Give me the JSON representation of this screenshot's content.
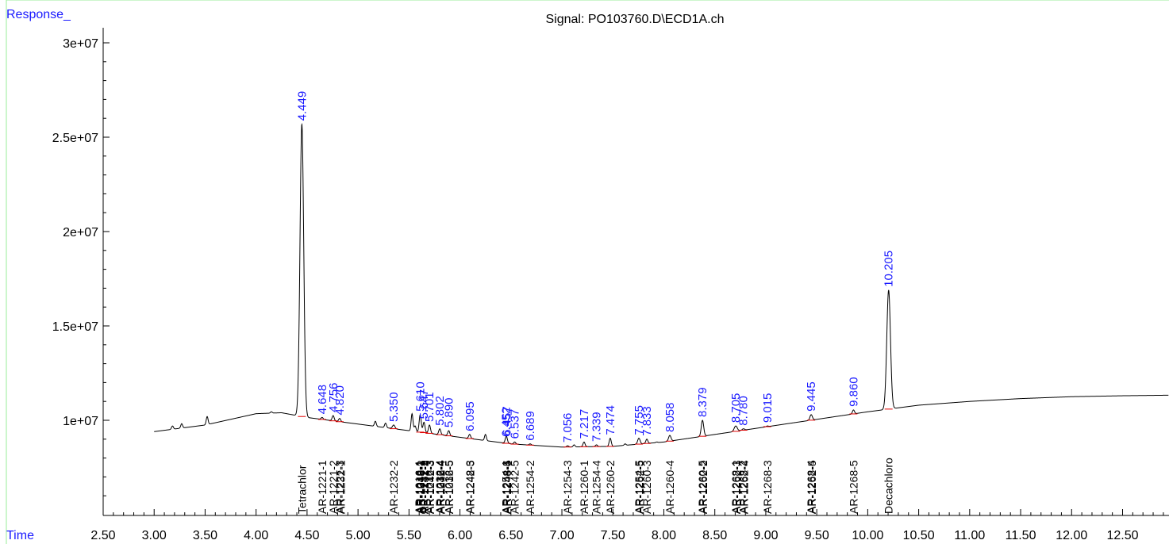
{
  "chart_data": {
    "type": "line",
    "title": "Signal: PO103760.D\\ECD1A.ch",
    "ylabel": "Response_",
    "xlabel": "Time",
    "xlim": [
      2.5,
      12.95
    ],
    "ylim": [
      5200000,
      30800000
    ],
    "x_ticks": [
      "2.50",
      "3.00",
      "3.50",
      "4.00",
      "4.50",
      "5.00",
      "5.50",
      "6.00",
      "6.50",
      "7.00",
      "7.50",
      "8.00",
      "8.50",
      "9.00",
      "9.50",
      "10.00",
      "10.50",
      "11.00",
      "11.50",
      "12.00",
      "12.50"
    ],
    "y_ticks": [
      "1e+07",
      "1.5e+07",
      "2e+07",
      "2.5e+07",
      "3e+07"
    ],
    "grid": false,
    "colors": {
      "trace": "#000000",
      "peak_label": "#1a1aff",
      "baseline_mark": "#e00000",
      "axis": "#000000",
      "frame": "#99ee99"
    },
    "baseline": [
      [
        3.0,
        9400000
      ],
      [
        3.5,
        9750000
      ],
      [
        4.0,
        10350000
      ],
      [
        4.25,
        10400000
      ],
      [
        4.5,
        10150000
      ],
      [
        5.0,
        9800000
      ],
      [
        5.5,
        9450000
      ],
      [
        6.0,
        9100000
      ],
      [
        6.5,
        8750000
      ],
      [
        7.0,
        8580000
      ],
      [
        7.5,
        8620000
      ],
      [
        8.0,
        8850000
      ],
      [
        8.5,
        9250000
      ],
      [
        9.0,
        9650000
      ],
      [
        9.5,
        10050000
      ],
      [
        10.0,
        10450000
      ],
      [
        10.5,
        10800000
      ],
      [
        11.0,
        11000000
      ],
      [
        11.5,
        11150000
      ],
      [
        12.0,
        11250000
      ],
      [
        12.5,
        11300000
      ],
      [
        12.95,
        11330000
      ]
    ],
    "peaks": [
      {
        "rt": "4.449",
        "h": 25700000,
        "w": 0.018
      },
      {
        "rt": "4.648",
        "h": 10150000,
        "w": 0.01
      },
      {
        "rt": "4.756",
        "h": 10250000,
        "w": 0.01
      },
      {
        "rt": "4.820",
        "h": 10100000,
        "w": 0.01
      },
      {
        "rt": "5.350",
        "h": 9750000,
        "w": 0.012
      },
      {
        "rt": "5.610",
        "h": 10300000,
        "w": 0.01
      },
      {
        "rt": "5.647",
        "h": 9900000,
        "w": 0.01
      },
      {
        "rt": "5.701",
        "h": 9750000,
        "w": 0.01
      },
      {
        "rt": "5.802",
        "h": 9550000,
        "w": 0.01
      },
      {
        "rt": "5.890",
        "h": 9450000,
        "w": 0.01
      },
      {
        "rt": "6.095",
        "h": 9250000,
        "w": 0.01
      },
      {
        "rt": "6.452",
        "h": 8950000,
        "w": 0.01
      },
      {
        "rt": "6.457",
        "h": 9000000,
        "w": 0.01
      },
      {
        "rt": "6.537",
        "h": 8850000,
        "w": 0.01
      },
      {
        "rt": "6.689",
        "h": 8750000,
        "w": 0.01
      },
      {
        "rt": "7.056",
        "h": 8650000,
        "w": 0.01
      },
      {
        "rt": "7.217",
        "h": 8850000,
        "w": 0.01
      },
      {
        "rt": "7.339",
        "h": 8700000,
        "w": 0.01
      },
      {
        "rt": "7.474",
        "h": 9050000,
        "w": 0.01
      },
      {
        "rt": "7.755",
        "h": 9050000,
        "w": 0.012
      },
      {
        "rt": "7.833",
        "h": 9000000,
        "w": 0.01
      },
      {
        "rt": "8.058",
        "h": 9200000,
        "w": 0.012
      },
      {
        "rt": "8.379",
        "h": 10000000,
        "w": 0.012
      },
      {
        "rt": "8.705",
        "h": 9700000,
        "w": 0.015
      },
      {
        "rt": "8.780",
        "h": 9550000,
        "w": 0.012
      },
      {
        "rt": "9.015",
        "h": 9700000,
        "w": 0.01
      },
      {
        "rt": "9.445",
        "h": 10300000,
        "w": 0.012
      },
      {
        "rt": "9.860",
        "h": 10550000,
        "w": 0.01
      },
      {
        "rt": "10.205",
        "h": 16900000,
        "w": 0.018
      }
    ],
    "minor_peaks": [
      [
        3.18,
        9700000
      ],
      [
        3.27,
        9820000
      ],
      [
        3.52,
        10200000
      ],
      [
        4.15,
        10450000
      ],
      [
        4.28,
        10350000
      ],
      [
        5.17,
        9950000
      ],
      [
        5.27,
        9850000
      ],
      [
        5.53,
        10350000
      ],
      [
        5.56,
        9700000
      ],
      [
        6.25,
        9250000
      ],
      [
        7.12,
        8700000
      ],
      [
        7.62,
        8750000
      ],
      [
        7.93,
        8850000
      ],
      [
        8.22,
        8950000
      ],
      [
        9.18,
        9750000
      ],
      [
        9.64,
        10150000
      ]
    ],
    "compound_labels": [
      {
        "t": 4.449,
        "text": "Tetrachlor"
      },
      {
        "t": 4.648,
        "text": "AR-1221-1"
      },
      {
        "t": 4.756,
        "text": "AR-1221-2"
      },
      {
        "t": 4.82,
        "text": "AR-1221-3"
      },
      {
        "t": 4.83,
        "text": "AR-1232-1"
      },
      {
        "t": 5.35,
        "text": "AR-1232-2"
      },
      {
        "t": 5.6,
        "text": "AR-1016-1"
      },
      {
        "t": 5.606,
        "text": "AR-1242-1"
      },
      {
        "t": 5.612,
        "text": "AR-1248-1"
      },
      {
        "t": 5.618,
        "text": "AR-1016-2"
      },
      {
        "t": 5.647,
        "text": "AR-1242-2"
      },
      {
        "t": 5.653,
        "text": "AR-1232-3"
      },
      {
        "t": 5.701,
        "text": "AR-1016-3"
      },
      {
        "t": 5.707,
        "text": "AR-1242-3"
      },
      {
        "t": 5.802,
        "text": "AR-1232-4"
      },
      {
        "t": 5.808,
        "text": "AR-1016-4"
      },
      {
        "t": 5.814,
        "text": "AR-1242-4"
      },
      {
        "t": 5.89,
        "text": "AR-1232-5"
      },
      {
        "t": 5.896,
        "text": "AR-1016-5"
      },
      {
        "t": 6.095,
        "text": "AR-1248-3"
      },
      {
        "t": 6.101,
        "text": "AR-1242-5"
      },
      {
        "t": 6.452,
        "text": "AR-1254-1"
      },
      {
        "t": 6.458,
        "text": "AR-1248-4"
      },
      {
        "t": 6.464,
        "text": "AR-1248-5"
      },
      {
        "t": 6.537,
        "text": "AR-1242-5"
      },
      {
        "t": 6.689,
        "text": "AR-1254-2"
      },
      {
        "t": 7.056,
        "text": "AR-1254-3"
      },
      {
        "t": 7.217,
        "text": "AR-1260-1"
      },
      {
        "t": 7.339,
        "text": "AR-1254-4"
      },
      {
        "t": 7.474,
        "text": "AR-1260-2"
      },
      {
        "t": 7.755,
        "text": "AR-1254-5"
      },
      {
        "t": 7.761,
        "text": "AR-1262-5"
      },
      {
        "t": 7.833,
        "text": "AR-1260-3"
      },
      {
        "t": 8.058,
        "text": "AR-1260-4"
      },
      {
        "t": 8.379,
        "text": "AR-1260-5"
      },
      {
        "t": 8.385,
        "text": "AR-1262-2"
      },
      {
        "t": 8.705,
        "text": "AR-1268-1"
      },
      {
        "t": 8.711,
        "text": "AR-1262-3"
      },
      {
        "t": 8.78,
        "text": "AR-1268-2"
      },
      {
        "t": 8.786,
        "text": "AR-1262-4"
      },
      {
        "t": 9.015,
        "text": "AR-1268-3"
      },
      {
        "t": 9.445,
        "text": "AR-1268-4"
      },
      {
        "t": 9.451,
        "text": "AR-1262-5"
      },
      {
        "t": 9.86,
        "text": "AR-1268-5"
      },
      {
        "t": 10.205,
        "text": "Decachloro"
      }
    ]
  }
}
